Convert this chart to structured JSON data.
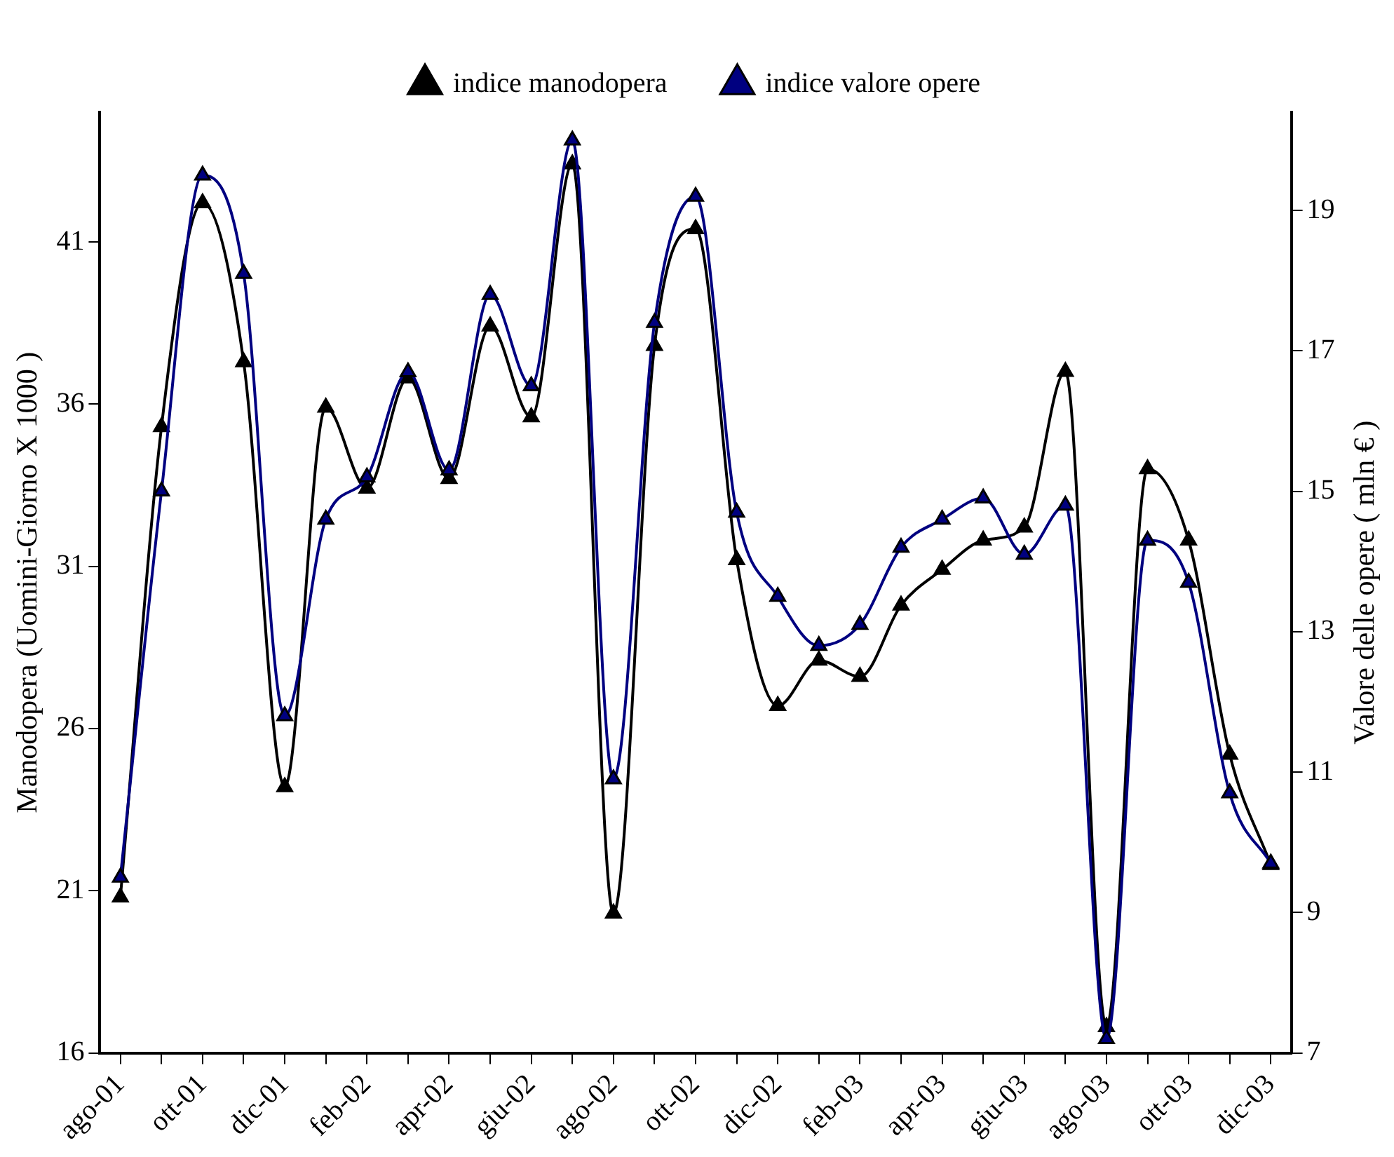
{
  "chart_data": {
    "type": "line",
    "ylabel": "Manodopera (Uomini-Giorno X 1000 )",
    "y2label": "Valore delle opere ( mln € )",
    "categories": [
      "ago-01",
      null,
      "ott-01",
      null,
      "dic-01",
      null,
      "feb-02",
      null,
      "apr-02",
      null,
      "giu-02",
      null,
      "ago-02",
      null,
      "ott-02",
      null,
      "dic-02",
      null,
      "feb-03",
      null,
      "apr-03",
      null,
      "giu-03",
      null,
      "ago-03",
      null,
      "ott-03",
      null,
      "dic-03"
    ],
    "series": [
      {
        "name": "indice manodopera",
        "color": "#000000",
        "values": [
          20.8,
          35.3,
          42.2,
          37.3,
          24.2,
          35.9,
          33.4,
          36.8,
          33.7,
          38.4,
          35.6,
          43.4,
          20.3,
          37.8,
          41.4,
          31.2,
          26.7,
          28.1,
          27.6,
          29.8,
          30.9,
          31.8,
          32.2,
          37.0,
          16.8,
          34.0,
          31.8,
          25.2,
          21.8
        ]
      },
      {
        "name": "indice valore opere",
        "color": "#000080",
        "axis": "y2",
        "values": [
          9.5,
          15.0,
          19.5,
          18.1,
          11.8,
          14.6,
          15.2,
          16.7,
          15.3,
          17.8,
          16.5,
          20.0,
          10.9,
          17.4,
          19.2,
          14.7,
          13.5,
          12.8,
          13.1,
          14.2,
          14.6,
          14.9,
          14.1,
          14.8,
          7.2,
          14.3,
          13.7,
          10.7,
          9.7
        ]
      }
    ],
    "ylim": [
      16,
      45
    ],
    "yticks": [
      16,
      21,
      26,
      31,
      36,
      41
    ],
    "y2lim": [
      7,
      20.4
    ],
    "y2ticks": [
      7,
      9,
      11,
      13,
      15,
      17,
      19
    ],
    "legend": "top",
    "marker": "triangle",
    "line_style": "solid",
    "grid": false
  }
}
